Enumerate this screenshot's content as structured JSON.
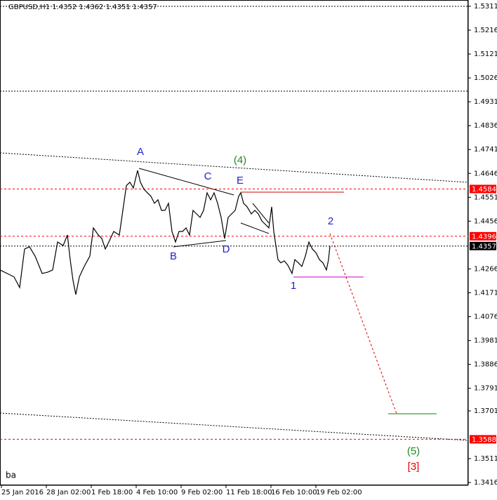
{
  "chart_data": {
    "type": "line",
    "title": "GBPUSD,H1  1.4352 1.4362 1.4351 1.4357",
    "corner_text": "ba",
    "xlim": [
      0,
      667
    ],
    "ylim": [
      1.3405,
      1.5336
    ],
    "xticks": [
      {
        "value": 2,
        "label": "25 Jan 2016"
      },
      {
        "value": 66,
        "label": "28 Jan 02:00"
      },
      {
        "value": 130,
        "label": "1 Feb 18:00"
      },
      {
        "value": 194,
        "label": "4 Feb 10:00"
      },
      {
        "value": 258,
        "label": "9 Feb 02:00"
      },
      {
        "value": 322,
        "label": "11 Feb 18:00"
      },
      {
        "value": 386,
        "label": "16 Feb 10:00"
      },
      {
        "value": 450,
        "label": "19 Feb 02:00"
      }
    ],
    "yticks": [
      1.5311,
      1.5216,
      1.5121,
      1.5026,
      1.4931,
      1.4836,
      1.4741,
      1.4646,
      1.4551,
      1.4456,
      1.4266,
      1.4171,
      1.4076,
      1.3981,
      1.3886,
      1.3791,
      1.3701,
      1.3511,
      1.3416
    ],
    "levels": [
      {
        "value": 1.4584,
        "color": "#ff0000"
      },
      {
        "value": 1.4396,
        "color": "#ff0000"
      },
      {
        "value": 1.4357,
        "color": "#000000"
      },
      {
        "value": 1.3588,
        "color": "#ff0000"
      }
    ],
    "series": [
      {
        "color": "#000000",
        "x": [
          0,
          10,
          20,
          28,
          35,
          42,
          50,
          60,
          68,
          75,
          82,
          90,
          96,
          100,
          104,
          108,
          113,
          120,
          128,
          133,
          140,
          145,
          150,
          155,
          162,
          170,
          175,
          180,
          185,
          190,
          196,
          200,
          205,
          210,
          215,
          220,
          225,
          230,
          235,
          240,
          245,
          250,
          255,
          260,
          265,
          270,
          275,
          280,
          285,
          290,
          295,
          300,
          305,
          310,
          315,
          320,
          325,
          330,
          335,
          340,
          343,
          347,
          352,
          358,
          363,
          368,
          373,
          378,
          383,
          387,
          390,
          393,
          396,
          400,
          405,
          410,
          416,
          420,
          425,
          430,
          435,
          440,
          445,
          450,
          455,
          460,
          465,
          468,
          470
        ],
        "values": [
          1.4262,
          1.4248,
          1.4234,
          1.4192,
          1.4345,
          1.4354,
          1.4317,
          1.4248,
          1.4253,
          1.4262,
          1.4373,
          1.4359,
          1.4401,
          1.4303,
          1.422,
          1.4164,
          1.4234,
          1.4276,
          1.4317,
          1.4429,
          1.4401,
          1.4387,
          1.4345,
          1.4373,
          1.4415,
          1.4401,
          1.4499,
          1.4597,
          1.4611,
          1.4588,
          1.4658,
          1.4611,
          1.4583,
          1.4569,
          1.4555,
          1.4527,
          1.4541,
          1.4499,
          1.4499,
          1.4527,
          1.4415,
          1.4373,
          1.4415,
          1.4415,
          1.4429,
          1.4401,
          1.4499,
          1.4485,
          1.4471,
          1.4499,
          1.4569,
          1.4541,
          1.4569,
          1.4527,
          1.4471,
          1.4387,
          1.4471,
          1.4485,
          1.4499,
          1.4555,
          1.4569,
          1.4527,
          1.4513,
          1.4485,
          1.4499,
          1.4485,
          1.4457,
          1.4443,
          1.4429,
          1.4513,
          1.4415,
          1.4359,
          1.4303,
          1.429,
          1.4298,
          1.4281,
          1.4248,
          1.4303,
          1.429,
          1.4276,
          1.4317,
          1.4373,
          1.4345,
          1.4331,
          1.4303,
          1.429,
          1.4262,
          1.4303,
          1.4357
        ]
      }
    ],
    "annotations": [
      {
        "text": "A",
        "color": "#2222cc"
      },
      {
        "text": "B",
        "color": "#2222cc"
      },
      {
        "text": "C",
        "color": "#2222cc"
      },
      {
        "text": "D",
        "color": "#2222cc"
      },
      {
        "text": "E",
        "color": "#2222cc"
      },
      {
        "text": "(4)",
        "color": "#228822"
      },
      {
        "text": "1",
        "color": "#2222cc"
      },
      {
        "text": "2",
        "color": "#2222cc"
      },
      {
        "text": "(5)",
        "color": "#228822"
      },
      {
        "text": "[3]",
        "color": "#ee0000"
      }
    ]
  }
}
